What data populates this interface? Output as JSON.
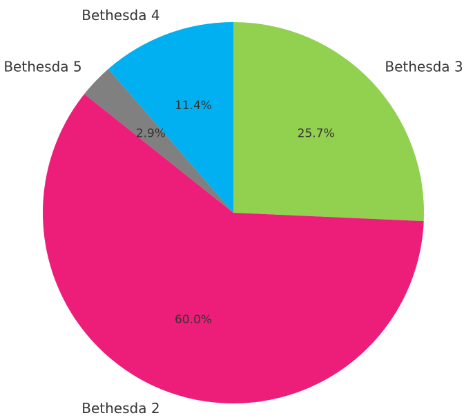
{
  "chart_data": {
    "type": "pie",
    "categories": [
      "Bethesda 3",
      "Bethesda 2",
      "Bethesda 5",
      "Bethesda 4"
    ],
    "values": [
      25.7,
      60.0,
      2.9,
      11.4
    ],
    "value_labels": [
      "25.7%",
      "60.0%",
      "2.9%",
      "11.4%"
    ],
    "colors": [
      "#92d050",
      "#ed1e79",
      "#808080",
      "#00b0f0"
    ]
  }
}
